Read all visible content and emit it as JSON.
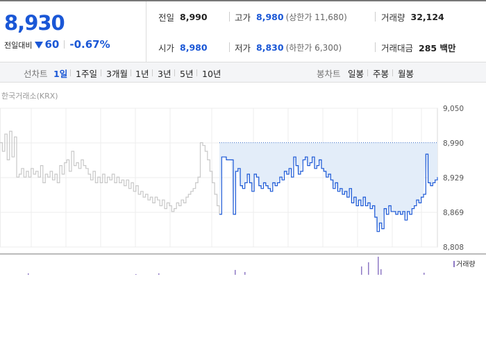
{
  "quote": {
    "price": "8,930",
    "change_label": "전일대비",
    "change_value": "60",
    "change_pct": "-0.67%",
    "direction": "down"
  },
  "stats": {
    "prev_close": {
      "label": "전일",
      "value": "8,990"
    },
    "high": {
      "label": "고가",
      "value": "8,980",
      "sub": "(상한가 11,680)"
    },
    "volume": {
      "label": "거래량",
      "value": "32,124"
    },
    "open": {
      "label": "시가",
      "value": "8,980"
    },
    "low": {
      "label": "저가",
      "value": "8,830",
      "sub": "(하한가 6,300)"
    },
    "trade_value": {
      "label": "거래대금",
      "value": "285 백만"
    }
  },
  "line_chart_tabs": {
    "header": "선차트",
    "items": [
      "1일",
      "1주일",
      "3개월",
      "1년",
      "3년",
      "5년",
      "10년"
    ],
    "active": "1일"
  },
  "candle_chart_tabs": {
    "header": "봉차트",
    "items": [
      "일봉",
      "주봉",
      "월봉"
    ]
  },
  "chart": {
    "source": "한국거래소(KRX)",
    "volume_legend": "거래량"
  },
  "colors": {
    "accent_blue": "#1a57d6",
    "prev_day_line": "#c8c8c8",
    "area_fill": "#e3edf9",
    "volume_bar": "#8f7ac5"
  },
  "chart_data": {
    "type": "line",
    "y_ticks": [
      "9,050",
      "8,990",
      "8,929",
      "8,869",
      "8,808"
    ],
    "ylim": [
      8808,
      9050
    ],
    "reference_price": 8990,
    "series": [
      {
        "values": [
          8990,
          8975,
          9005,
          8960,
          9010,
          8965,
          9000,
          8930,
          8935,
          8945,
          8930,
          8940,
          8930,
          8945,
          8935,
          8940,
          8930,
          8950,
          8920,
          8935,
          8930,
          8940,
          8925,
          8935,
          8920,
          8950,
          8935,
          8955,
          8960,
          8940,
          8975,
          8950,
          8955,
          8945,
          8960,
          8950,
          8945,
          8935,
          8925,
          8940,
          8920,
          8930,
          8920,
          8935,
          8920,
          8930,
          8925,
          8935,
          8920,
          8930,
          8920,
          8925,
          8915,
          8925,
          8910,
          8920,
          8905,
          8915,
          8900,
          8905,
          8895,
          8900,
          8890,
          8895,
          8885,
          8895,
          8890,
          8880,
          8890,
          8875,
          8885,
          8880,
          8870,
          8875,
          8885,
          8880,
          8890,
          8885,
          8895,
          8900,
          8905,
          8910,
          8920,
          8930,
          8990,
          8985,
          8975,
          8960,
          8940,
          8920,
          8900,
          8880,
          8865
        ]
      },
      {
        "values": [
          8865,
          8965,
          8965,
          8960,
          8960,
          8960,
          8865,
          8940,
          8945,
          8915,
          8910,
          8920,
          8935,
          8920,
          8905,
          8935,
          8930,
          8915,
          8910,
          8920,
          8915,
          8910,
          8905,
          8920,
          8915,
          8920,
          8930,
          8925,
          8940,
          8935,
          8945,
          8930,
          8965,
          8950,
          8935,
          8940,
          8960,
          8965,
          8950,
          8955,
          8965,
          8945,
          8950,
          8960,
          8945,
          8940,
          8930,
          8935,
          8925,
          8910,
          8920,
          8905,
          8910,
          8900,
          8905,
          8895,
          8910,
          8885,
          8895,
          8880,
          8890,
          8880,
          8895,
          8880,
          8885,
          8875,
          8880,
          8860,
          8835,
          8850,
          8840,
          8875,
          8865,
          8880,
          8870,
          8870,
          8865,
          8870,
          8865,
          8870,
          8855,
          8870,
          8865,
          8875,
          8880,
          8890,
          8885,
          8895,
          8900,
          8970,
          8920,
          8915,
          8920,
          8925,
          8930
        ]
      }
    ]
  }
}
